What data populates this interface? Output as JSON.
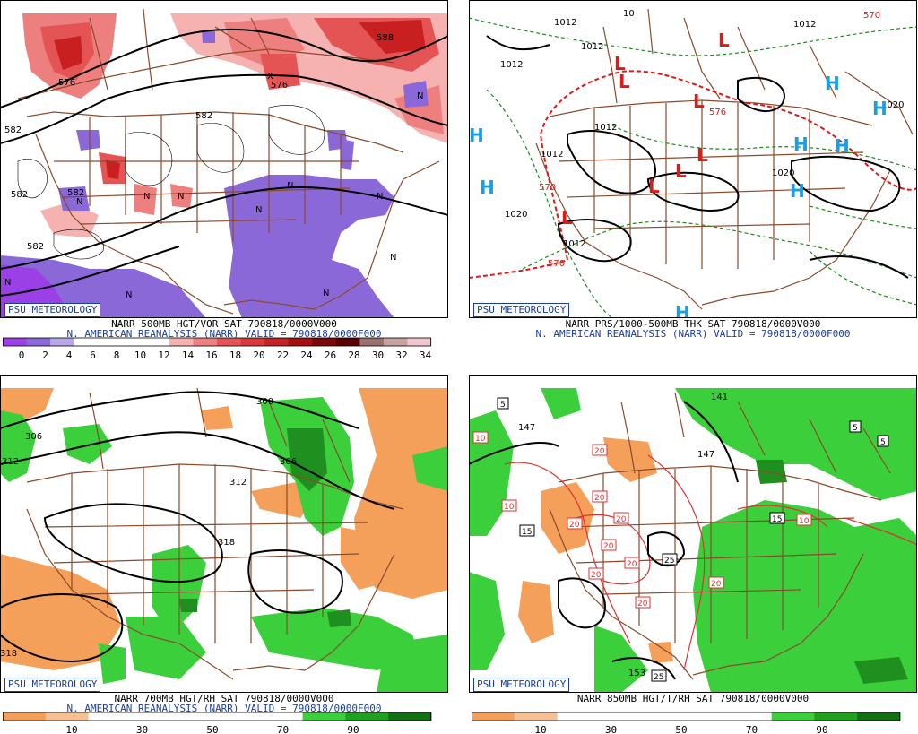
{
  "panels": [
    {
      "logo": "PSU METEOROLOGY",
      "line1": "NARR 500MB HGT/VOR SAT 790818/0000V000",
      "line2": "N. AMERICAN REANALYSIS (NARR) VALID = 790818/0000F000",
      "contour_labels": [
        "576",
        "582",
        "582",
        "582",
        "588",
        "582",
        "582",
        "576"
      ],
      "markers": [
        "N",
        "N",
        "N",
        "N",
        "N",
        "N",
        "N",
        "N",
        "N",
        "N",
        "N",
        "X"
      ],
      "colorbar": {
        "ticks": [
          "0",
          "2",
          "4",
          "6",
          "8",
          "10",
          "12",
          "14",
          "16",
          "18",
          "20",
          "22",
          "24",
          "26",
          "28",
          "30",
          "32",
          "34"
        ],
        "colors": [
          "#9a40e6",
          "#8a68d8",
          "#b9a6e6",
          "#ffffff",
          "#ffffff",
          "#ffffff",
          "#ffffff",
          "#f6b1b1",
          "#ee7f7f",
          "#e55454",
          "#d83838",
          "#c52323",
          "#a31010",
          "#7a0a0a",
          "#5a0000",
          "#9a6f6f",
          "#c7a0a0",
          "#f2c4d0"
        ]
      },
      "colors": {
        "vort_neg": "#8a68d8",
        "vort_pos": "#e55454",
        "vort_pos_dark": "#c82020"
      }
    },
    {
      "logo": "PSU METEOROLOGY",
      "line1": "NARR PRS/1000-500MB THK SAT 790818/0000V000",
      "line2": "N. AMERICAN REANALYSIS (NARR) VALID = 790818/0000F000",
      "pressure_labels": [
        "1012",
        "1012",
        "1012",
        "1012",
        "1012",
        "1020",
        "1020",
        "1012",
        "1020",
        "1012",
        "10"
      ],
      "thickness_labels": [
        "570",
        "570",
        "576",
        "570"
      ],
      "highs": [
        "H",
        "H",
        "H",
        "H",
        "H",
        "H",
        "H",
        "H"
      ],
      "lows": [
        "L",
        "L",
        "L",
        "L",
        "L",
        "L",
        "L",
        "L"
      ],
      "colors": {
        "high": "#18a0e6",
        "low": "#e01818",
        "thickness": "#1a8a1a",
        "thickness_570": "#e01818"
      }
    },
    {
      "logo": "PSU METEOROLOGY",
      "line1": "NARR 700MB HGT/RH SAT 790818/0000V000",
      "line2": "N. AMERICAN REANALYSIS (NARR) VALID = 790818/0000F000",
      "contour_labels": [
        "306",
        "312",
        "300",
        "306",
        "312",
        "318",
        "318"
      ],
      "colorbar": {
        "ticks": [
          "10",
          "30",
          "50",
          "70",
          "90"
        ],
        "colors": [
          "#f4a05a",
          "#f8c090",
          "#ffffff",
          "#ffffff",
          "#ffffff",
          "#ffffff",
          "#ffffff",
          "#3ccf3c",
          "#1fa01f",
          "#137013"
        ]
      },
      "colors": {
        "dry": "#f4a05a",
        "moist": "#3ccf3c",
        "moist_dark": "#1f8f1f"
      }
    },
    {
      "logo": "PSU METEOROLOGY",
      "line1": "NARR 850MB HGT/T/RH SAT 790818/0000V000",
      "line2": "",
      "contour_labels": [
        "141",
        "147",
        "147",
        "153"
      ],
      "temp_labels_red": [
        "10",
        "20",
        "20",
        "20",
        "20",
        "20",
        "20",
        "20",
        "20",
        "20",
        "10",
        "10"
      ],
      "temp_labels_black": [
        "5",
        "5",
        "5",
        "15",
        "15",
        "25",
        "25"
      ],
      "colorbar": {
        "ticks": [
          "10",
          "30",
          "50",
          "70",
          "90"
        ],
        "colors": [
          "#f4a05a",
          "#f8c090",
          "#ffffff",
          "#ffffff",
          "#ffffff",
          "#ffffff",
          "#ffffff",
          "#3ccf3c",
          "#1fa01f",
          "#137013"
        ]
      },
      "colors": {
        "dry": "#f4a05a",
        "moist": "#3ccf3c",
        "moist_dark": "#1f8f1f",
        "temp": "#e03030"
      }
    }
  ]
}
